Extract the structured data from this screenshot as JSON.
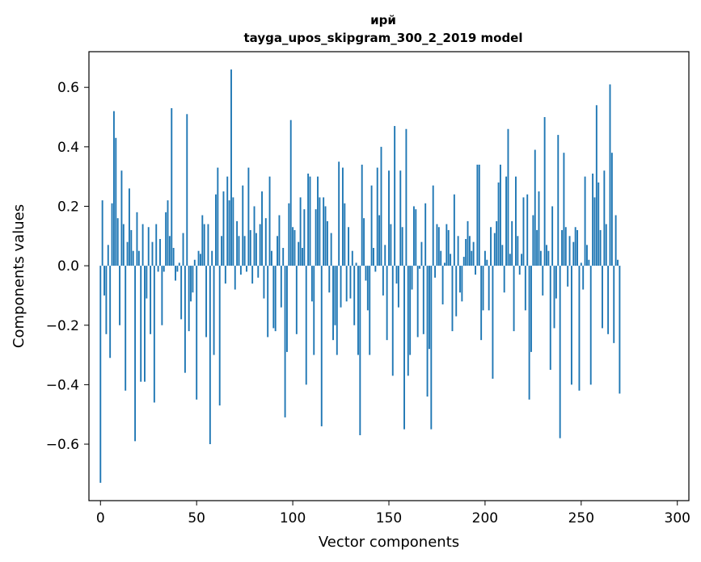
{
  "chart_data": {
    "type": "bar",
    "title_line1": "ирй",
    "title_line2": "tayga_upos_skipgram_300_2_2019 model",
    "xlabel": "Vector components",
    "ylabel": "Components values",
    "xlim": [
      -6,
      306
    ],
    "ylim": [
      -0.79,
      0.72
    ],
    "xticks": [
      0,
      50,
      100,
      150,
      200,
      250,
      300
    ],
    "xtick_labels": [
      "0",
      "50",
      "100",
      "150",
      "200",
      "250",
      "300"
    ],
    "yticks": [
      -0.6,
      -0.4,
      -0.2,
      0.0,
      0.2,
      0.4,
      0.6
    ],
    "ytick_labels": [
      "−0.6",
      "−0.4",
      "−0.2",
      "0.0",
      "0.2",
      "0.4",
      "0.6"
    ],
    "grid": false,
    "bar_color": "#1f77b4",
    "values": [
      -0.73,
      0.22,
      -0.1,
      -0.23,
      0.07,
      -0.31,
      0.21,
      0.52,
      0.43,
      0.16,
      -0.2,
      0.32,
      0.14,
      -0.42,
      0.08,
      0.26,
      0.12,
      0.05,
      -0.59,
      0.18,
      0.05,
      -0.39,
      0.14,
      -0.39,
      -0.11,
      0.13,
      -0.23,
      0.08,
      -0.46,
      0.14,
      -0.02,
      0.09,
      -0.2,
      -0.02,
      0.18,
      0.22,
      0.1,
      0.53,
      0.06,
      -0.05,
      -0.02,
      0.01,
      -0.18,
      0.11,
      -0.36,
      0.51,
      -0.22,
      -0.12,
      -0.09,
      0.02,
      -0.45,
      0.05,
      0.04,
      0.17,
      0.14,
      -0.24,
      0.14,
      -0.6,
      0.05,
      -0.3,
      0.24,
      0.33,
      -0.47,
      0.1,
      0.25,
      -0.06,
      0.3,
      0.22,
      0.66,
      0.23,
      -0.08,
      0.15,
      0.1,
      -0.03,
      0.27,
      0.1,
      -0.02,
      0.33,
      0.12,
      -0.06,
      0.2,
      0.11,
      -0.04,
      0.14,
      0.25,
      -0.11,
      0.16,
      -0.24,
      0.3,
      0.05,
      -0.21,
      -0.22,
      0.1,
      0.17,
      -0.14,
      0.06,
      -0.51,
      -0.29,
      0.21,
      0.49,
      0.13,
      0.12,
      -0.23,
      0.08,
      0.23,
      0.06,
      0.19,
      -0.4,
      0.31,
      0.3,
      -0.12,
      -0.3,
      0.19,
      0.3,
      0.23,
      -0.54,
      0.23,
      0.2,
      0.15,
      -0.09,
      0.11,
      -0.25,
      -0.2,
      -0.3,
      0.35,
      -0.14,
      0.33,
      0.21,
      -0.12,
      0.13,
      -0.11,
      0.05,
      -0.2,
      0.01,
      -0.3,
      -0.57,
      0.34,
      0.16,
      -0.05,
      -0.15,
      -0.3,
      0.27,
      0.06,
      -0.02,
      0.33,
      0.17,
      0.4,
      -0.1,
      0.07,
      -0.25,
      0.32,
      0.14,
      -0.37,
      0.47,
      -0.06,
      -0.14,
      0.32,
      0.13,
      -0.55,
      0.46,
      -0.37,
      -0.3,
      -0.08,
      0.2,
      0.19,
      -0.24,
      -0.01,
      0.08,
      -0.23,
      0.21,
      -0.44,
      -0.28,
      -0.55,
      0.27,
      -0.04,
      0.14,
      0.13,
      0.05,
      -0.13,
      0.01,
      0.14,
      0.12,
      0.04,
      -0.22,
      0.24,
      -0.17,
      0.1,
      -0.09,
      -0.12,
      0.03,
      0.09,
      0.15,
      0.1,
      0.05,
      0.08,
      -0.03,
      0.34,
      0.34,
      -0.25,
      -0.15,
      0.05,
      0.02,
      -0.15,
      0.13,
      -0.38,
      0.11,
      0.15,
      0.28,
      0.34,
      0.07,
      -0.09,
      0.3,
      0.46,
      0.04,
      0.15,
      -0.22,
      0.3,
      0.1,
      -0.03,
      0.04,
      0.23,
      -0.15,
      0.24,
      -0.45,
      -0.29,
      0.17,
      0.39,
      0.12,
      0.25,
      0.05,
      -0.1,
      0.5,
      0.07,
      0.05,
      -0.35,
      0.2,
      -0.21,
      -0.11,
      0.44,
      -0.58,
      0.12,
      0.38,
      0.13,
      -0.07,
      0.1,
      -0.4,
      0.08,
      0.13,
      0.12,
      -0.42,
      0.01,
      -0.08,
      0.3,
      0.07,
      0.02,
      -0.4,
      0.31,
      0.23,
      0.54,
      0.28,
      0.12,
      -0.21,
      0.32,
      0.14,
      -0.23,
      0.61,
      0.38,
      -0.26,
      0.17,
      0.02,
      -0.43
    ]
  }
}
